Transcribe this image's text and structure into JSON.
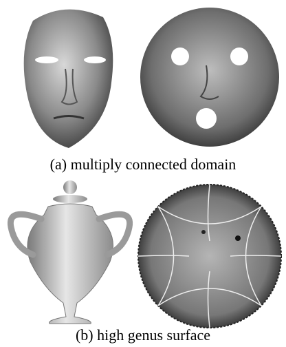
{
  "figure": {
    "captions": [
      "(a) multiply connected domain",
      "(b) high genus surface"
    ]
  }
}
